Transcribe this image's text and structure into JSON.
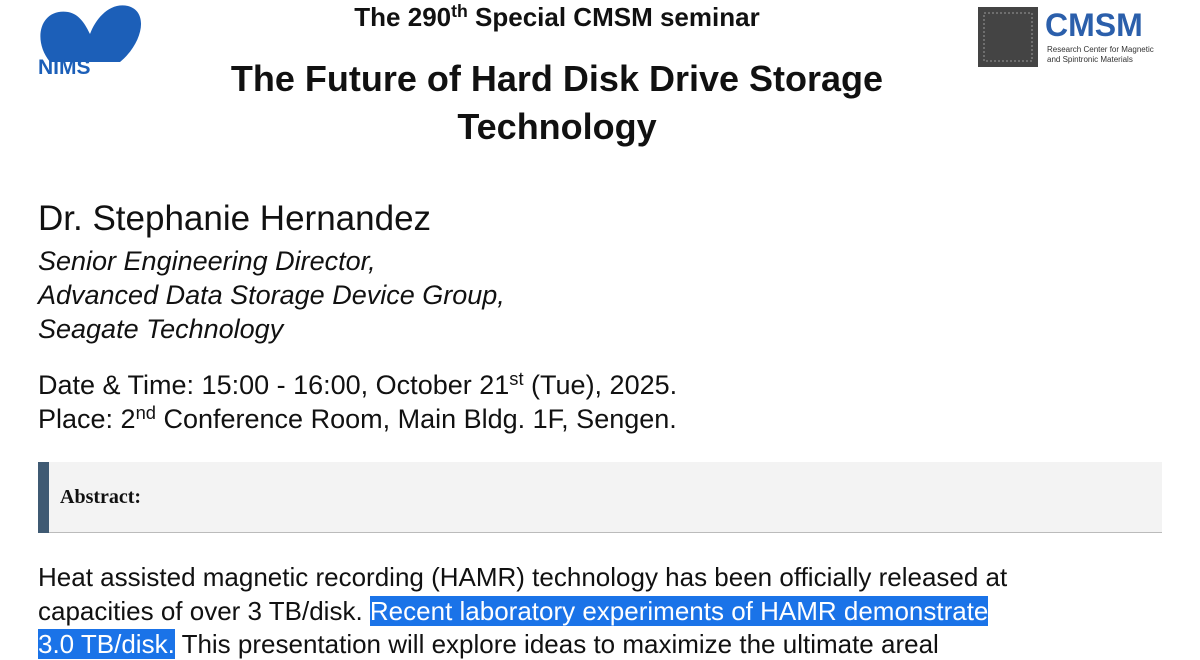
{
  "logos": {
    "left": "NIMS",
    "right": {
      "name": "CMSM",
      "subtitle_lines": [
        "Research Center for Magnetic",
        "and Spintronic Materials"
      ]
    }
  },
  "header": {
    "series_line": {
      "before": "The 290",
      "sup": "th",
      "after": " Special CMSM seminar"
    },
    "title_lines": [
      "The Future of Hard Disk Drive Storage",
      "Technology"
    ]
  },
  "speaker": {
    "name": "Dr. Stephanie Hernandez",
    "affiliation_lines": [
      "Senior Engineering Director,",
      "Advanced Data Storage Device Group,",
      "Seagate Technology"
    ]
  },
  "details": {
    "date": {
      "before": "Date & Time: 15:00 - 16:00, October 21",
      "sup": "st",
      "after": " (Tue), 2025."
    },
    "place": {
      "before": "Place: 2",
      "sup": "nd",
      "after": " Conference Room, Main Bldg. 1F, Sengen."
    }
  },
  "abstract": {
    "heading": "Abstract:",
    "lines": [
      [
        {
          "text": "Heat assisted magnetic recording (HAMR) technology has been officially released at"
        }
      ],
      [
        {
          "text": "capacities of over 3 TB/disk. "
        },
        {
          "text": "Recent laboratory experiments of HAMR demonstrate",
          "highlighted": true
        }
      ],
      [
        {
          "text": "3.0 TB/disk.",
          "highlighted": true
        },
        {
          "text": " This presentation will explore ideas to maximize the ultimate areal"
        }
      ]
    ]
  }
}
